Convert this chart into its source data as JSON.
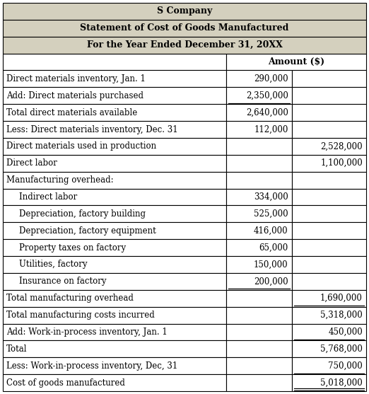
{
  "title1": "S Company",
  "title2": "Statement of Cost of Goods Manufactured",
  "title3": "For the Year Ended December 31, 20XX",
  "header_bg": "#d4d0be",
  "col_header": "Amount ($)",
  "rows": [
    {
      "label": "Direct materials inventory, Jan. 1",
      "col1": "290,000",
      "col2": "",
      "indent": 0,
      "ul1": false,
      "ul2": false
    },
    {
      "label": "Add: Direct materials purchased",
      "col1": "2,350,000",
      "col2": "",
      "indent": 0,
      "ul1": true,
      "ul2": false
    },
    {
      "label": "Total direct materials available",
      "col1": "2,640,000",
      "col2": "",
      "indent": 0,
      "ul1": false,
      "ul2": false
    },
    {
      "label": "Less: Direct materials inventory, Dec. 31",
      "col1": "112,000",
      "col2": "",
      "indent": 0,
      "ul1": false,
      "ul2": false
    },
    {
      "label": "Direct materials used in production",
      "col1": "",
      "col2": "2,528,000",
      "indent": 0,
      "ul1": false,
      "ul2": false
    },
    {
      "label": "Direct labor",
      "col1": "",
      "col2": "1,100,000",
      "indent": 0,
      "ul1": false,
      "ul2": false
    },
    {
      "label": "Manufacturing overhead:",
      "col1": "",
      "col2": "",
      "indent": 0,
      "ul1": false,
      "ul2": false
    },
    {
      "label": "Indirect labor",
      "col1": "334,000",
      "col2": "",
      "indent": 1,
      "ul1": false,
      "ul2": false
    },
    {
      "label": "Depreciation, factory building",
      "col1": "525,000",
      "col2": "",
      "indent": 1,
      "ul1": false,
      "ul2": false
    },
    {
      "label": "Depreciation, factory equipment",
      "col1": "416,000",
      "col2": "",
      "indent": 1,
      "ul1": false,
      "ul2": false
    },
    {
      "label": "Property taxes on factory",
      "col1": "65,000",
      "col2": "",
      "indent": 1,
      "ul1": false,
      "ul2": false
    },
    {
      "label": "Utilities, factory",
      "col1": "150,000",
      "col2": "",
      "indent": 1,
      "ul1": false,
      "ul2": false
    },
    {
      "label": "Insurance on factory",
      "col1": "200,000",
      "col2": "",
      "indent": 1,
      "ul1": true,
      "ul2": false
    },
    {
      "label": "Total manufacturing overhead",
      "col1": "",
      "col2": "1,690,000",
      "indent": 0,
      "ul1": false,
      "ul2": true
    },
    {
      "label": "Total manufacturing costs incurred",
      "col1": "",
      "col2": "5,318,000",
      "indent": 0,
      "ul1": false,
      "ul2": false
    },
    {
      "label": "Add: Work-in-process inventory, Jan. 1",
      "col1": "",
      "col2": "450,000",
      "indent": 0,
      "ul1": false,
      "ul2": true
    },
    {
      "label": "Total",
      "col1": "",
      "col2": "5,768,000",
      "indent": 0,
      "ul1": false,
      "ul2": false
    },
    {
      "label": "Less: Work-in-process inventory, Dec, 31",
      "col1": "",
      "col2": "750,000",
      "indent": 0,
      "ul1": false,
      "ul2": true
    },
    {
      "label": "Cost of goods manufactured",
      "col1": "",
      "col2": "5,018,000",
      "indent": 0,
      "ul1": false,
      "ul2": true,
      "double": true
    }
  ],
  "bg_color": "#ffffff",
  "text_color": "#000000",
  "border_color": "#000000",
  "font_size": 8.5,
  "header_font_size": 9.0
}
